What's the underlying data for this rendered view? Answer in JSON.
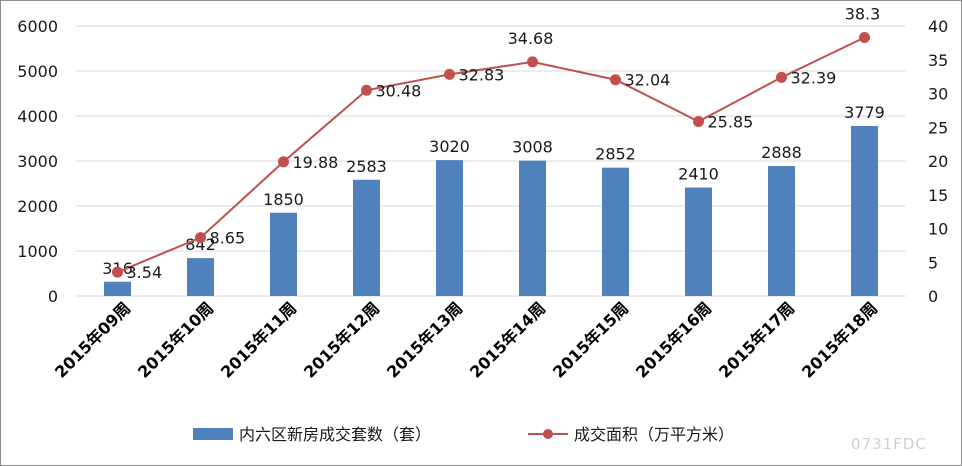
{
  "chart_data": {
    "type": "bar+line",
    "categories": [
      "2015年09周",
      "2015年10周",
      "2015年11周",
      "2015年12周",
      "2015年13周",
      "2015年14周",
      "2015年15周",
      "2015年16周",
      "2015年17周",
      "2015年18周"
    ],
    "series": [
      {
        "name": "内六区新房成交套数（套）",
        "type": "bar",
        "axis": "left",
        "color": "#4f81bd",
        "values": [
          316,
          842,
          1850,
          2583,
          3020,
          3008,
          2852,
          2410,
          2888,
          3779
        ]
      },
      {
        "name": "成交面积（万平方米）",
        "type": "line",
        "axis": "right",
        "color": "#c0504d",
        "values": [
          3.54,
          8.65,
          19.88,
          30.48,
          32.83,
          34.68,
          32.04,
          25.85,
          32.39,
          38.3
        ]
      }
    ],
    "ylim_left": [
      0,
      6000
    ],
    "yticks_left": [
      0,
      1000,
      2000,
      3000,
      4000,
      5000,
      6000
    ],
    "ylim_right": [
      0,
      40
    ],
    "yticks_right": [
      0,
      5,
      10,
      15,
      20,
      25,
      30,
      35,
      40
    ],
    "legend_position": "bottom",
    "grid": true
  },
  "watermark": "0731FDC"
}
